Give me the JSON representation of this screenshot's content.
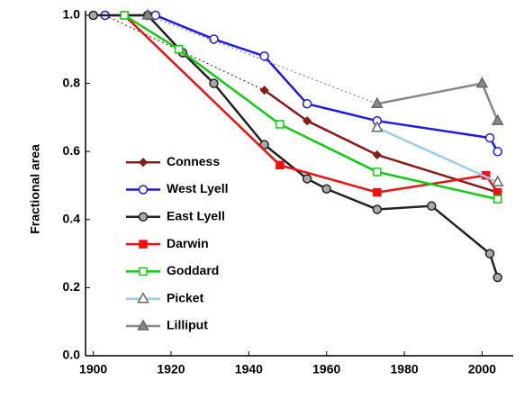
{
  "chart_data": {
    "type": "line",
    "ylabel": "Fractional area",
    "xlim": [
      1898,
      2008
    ],
    "ylim": [
      0,
      1.0
    ],
    "xticks": [
      1900,
      1920,
      1940,
      1960,
      1980,
      2000
    ],
    "yticks": [
      {
        "value": 0,
        "label": "0.0"
      },
      {
        "value": 0.2,
        "label": "0.2"
      },
      {
        "value": 0.4,
        "label": "0.4"
      },
      {
        "value": 0.6,
        "label": "0.6"
      },
      {
        "value": 0.8,
        "label": "0.8"
      },
      {
        "value": 1.0,
        "label": "1.0"
      }
    ],
    "legend": "lower left",
    "series": [
      {
        "name": "Conness",
        "color": "#8b1a1a",
        "marker": "diamond",
        "marker_fill": "#8b1a1a",
        "dotted_first_segment": true,
        "x": [
          1903,
          1944,
          1955,
          1973,
          2004
        ],
        "values": [
          1.0,
          0.78,
          0.69,
          0.59,
          0.48
        ]
      },
      {
        "name": "West Lyell",
        "color": "#1a1aee",
        "marker": "circle",
        "marker_fill": "#ffffff",
        "x": [
          1903,
          1916,
          1931,
          1944,
          1955,
          1973,
          2002,
          2004
        ],
        "values": [
          1.0,
          1.0,
          0.93,
          0.88,
          0.74,
          0.69,
          0.64,
          0.6
        ]
      },
      {
        "name": "East Lyell",
        "color": "#222222",
        "marker": "circle",
        "marker_fill": "#aaaaaa",
        "x": [
          1900,
          1914,
          1923,
          1931,
          1944,
          1955,
          1960,
          1973,
          1987,
          2002,
          2004
        ],
        "values": [
          1.0,
          1.0,
          0.89,
          0.8,
          0.62,
          0.52,
          0.49,
          0.43,
          0.44,
          0.3,
          0.23
        ]
      },
      {
        "name": "Darwin",
        "color": "#ee1111",
        "marker": "square",
        "marker_fill": "#ee1111",
        "x": [
          1908,
          1948,
          1973,
          2001,
          2004
        ],
        "values": [
          1.0,
          0.56,
          0.48,
          0.53,
          0.48
        ]
      },
      {
        "name": "Goddard",
        "color": "#11cc11",
        "marker": "square",
        "marker_fill": "#ffffff",
        "x": [
          1908,
          1922,
          1948,
          1973,
          2004
        ],
        "values": [
          1.0,
          0.9,
          0.68,
          0.54,
          0.46
        ]
      },
      {
        "name": "Picket",
        "color": "#99ccee",
        "marker": "triangle",
        "marker_fill": "#ffffff",
        "x": [
          1973,
          2004
        ],
        "values": [
          0.67,
          0.51
        ]
      },
      {
        "name": "Lilliput",
        "color": "#888888",
        "marker": "triangle",
        "marker_fill": "#888888",
        "dotted_first_segment": true,
        "x": [
          1914,
          1973,
          2000,
          2004
        ],
        "values": [
          1.0,
          0.74,
          0.8,
          0.69
        ]
      }
    ]
  }
}
